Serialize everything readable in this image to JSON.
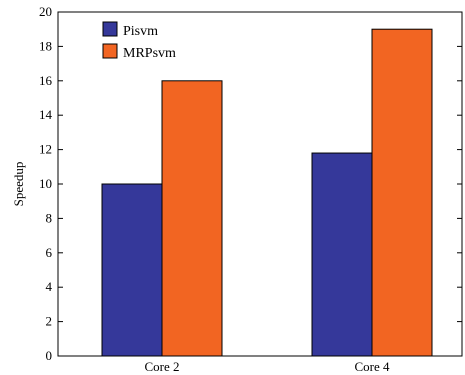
{
  "chart_data": {
    "type": "bar",
    "categories": [
      "Core 2",
      "Core 4"
    ],
    "series": [
      {
        "name": "Pisvm",
        "values": [
          10,
          11.8
        ],
        "color": "#35389A"
      },
      {
        "name": "MRPsvm",
        "values": [
          16,
          19
        ],
        "color": "#F26522"
      }
    ],
    "title": "",
    "xlabel": "",
    "ylabel": "Speedup",
    "ylim": [
      0,
      20
    ],
    "yticks": [
      0,
      2,
      4,
      6,
      8,
      10,
      12,
      14,
      16,
      18,
      20
    ],
    "grid": false,
    "legend_position": "top-left"
  }
}
